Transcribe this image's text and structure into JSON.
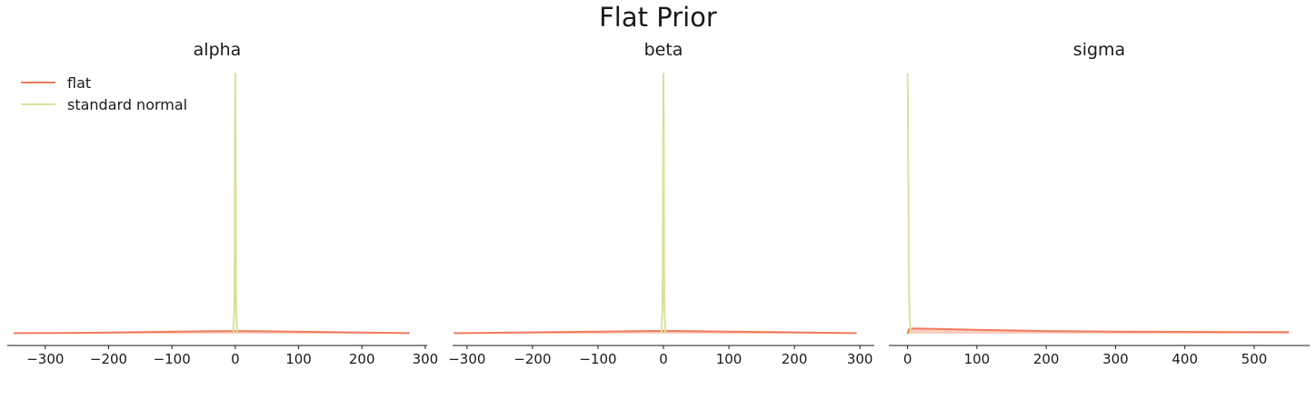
{
  "title": "Flat Prior",
  "colors": {
    "flat": "#f07b5c",
    "flat_fill": "#f9c9bb",
    "standard_normal": "#d4e49a",
    "axis": "#1a1a1a"
  },
  "legend": {
    "placement": "upper-left",
    "entries": [
      "flat",
      "standard normal"
    ]
  },
  "chart_data": [
    {
      "type": "line",
      "title": "alpha",
      "xlim": [
        -360,
        303
      ],
      "ylim": [
        0,
        1
      ],
      "xticks": [
        -300,
        -200,
        -100,
        0,
        100,
        200,
        300
      ],
      "xtick_labels": [
        "−300",
        "−200",
        "−100",
        "0",
        "100",
        "200",
        "300"
      ],
      "grid": false,
      "series": [
        {
          "name": "flat",
          "x": [
            -350,
            -250,
            -150,
            -50,
            0,
            50,
            150,
            250,
            275
          ],
          "y": [
            0.002,
            0.003,
            0.006,
            0.009,
            0.01,
            0.009,
            0.006,
            0.003,
            0.002
          ]
        },
        {
          "name": "standard normal",
          "x": [
            -3,
            -1.5,
            -1,
            -0.5,
            0,
            0.5,
            1,
            1.5,
            3
          ],
          "y": [
            0.0,
            0.1,
            0.3,
            0.8,
            1.0,
            0.8,
            0.3,
            0.1,
            0.0
          ]
        }
      ]
    },
    {
      "type": "line",
      "title": "beta",
      "xlim": [
        -322,
        322
      ],
      "ylim": [
        0,
        1
      ],
      "xticks": [
        -300,
        -200,
        -100,
        0,
        100,
        200,
        300
      ],
      "xtick_labels": [
        "−300",
        "−200",
        "−100",
        "0",
        "100",
        "200",
        "300"
      ],
      "grid": false,
      "series": [
        {
          "name": "flat",
          "x": [
            -320,
            -200,
            -100,
            -30,
            0,
            30,
            100,
            200,
            295
          ],
          "y": [
            0.002,
            0.005,
            0.008,
            0.01,
            0.011,
            0.01,
            0.008,
            0.005,
            0.002
          ]
        },
        {
          "name": "standard normal",
          "x": [
            -3,
            -1.5,
            -1,
            -0.5,
            0,
            0.5,
            1,
            1.5,
            3
          ],
          "y": [
            0.0,
            0.1,
            0.3,
            0.8,
            1.0,
            0.8,
            0.3,
            0.1,
            0.0
          ]
        }
      ]
    },
    {
      "type": "line",
      "title": "sigma",
      "xlim": [
        -27,
        580
      ],
      "ylim": [
        0,
        1
      ],
      "xticks": [
        0,
        100,
        200,
        300,
        400,
        500
      ],
      "xtick_labels": [
        "0",
        "100",
        "200",
        "300",
        "400",
        "500"
      ],
      "grid": false,
      "series": [
        {
          "name": "flat",
          "x": [
            0,
            2,
            10,
            50,
            100,
            200,
            300,
            400,
            550
          ],
          "y": [
            0.0,
            0.018,
            0.02,
            0.018,
            0.015,
            0.01,
            0.008,
            0.007,
            0.006
          ]
        },
        {
          "name": "standard normal",
          "x": [
            0,
            0.5,
            1,
            2,
            3,
            5
          ],
          "y": [
            1.0,
            0.9,
            0.6,
            0.2,
            0.05,
            0.0
          ]
        }
      ]
    }
  ]
}
